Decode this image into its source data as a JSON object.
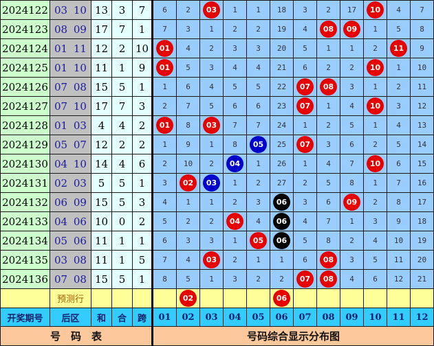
{
  "colors": {
    "red": "#e80000",
    "blue": "#0000cc",
    "black": "#000000"
  },
  "rows": [
    {
      "period": "2024122",
      "back": "03 10",
      "sum": "13",
      "he": "3",
      "span": "7",
      "cells": [
        6,
        2,
        {
          "b": "03",
          "c": "red"
        },
        1,
        1,
        18,
        3,
        2,
        17,
        {
          "b": "10",
          "c": "red"
        },
        4,
        7
      ]
    },
    {
      "period": "2024123",
      "back": "08 09",
      "sum": "17",
      "he": "7",
      "span": "1",
      "cells": [
        7,
        3,
        1,
        2,
        2,
        19,
        4,
        {
          "b": "08",
          "c": "red"
        },
        {
          "b": "09",
          "c": "red"
        },
        1,
        5,
        8
      ]
    },
    {
      "period": "2024124",
      "back": "01 11",
      "sum": "12",
      "he": "2",
      "span": "10",
      "cells": [
        {
          "b": "01",
          "c": "red"
        },
        4,
        2,
        3,
        3,
        20,
        5,
        1,
        1,
        2,
        {
          "b": "11",
          "c": "red"
        },
        9
      ]
    },
    {
      "period": "2024125",
      "back": "01 10",
      "sum": "11",
      "he": "1",
      "span": "9",
      "cells": [
        {
          "b": "01",
          "c": "red"
        },
        5,
        3,
        4,
        4,
        21,
        6,
        2,
        2,
        {
          "b": "10",
          "c": "red"
        },
        1,
        10
      ]
    },
    {
      "period": "2024126",
      "back": "07 08",
      "sum": "15",
      "he": "5",
      "span": "1",
      "cells": [
        1,
        6,
        4,
        5,
        5,
        22,
        {
          "b": "07",
          "c": "red"
        },
        {
          "b": "08",
          "c": "red"
        },
        3,
        1,
        2,
        11
      ]
    },
    {
      "period": "2024127",
      "back": "07 10",
      "sum": "17",
      "he": "7",
      "span": "3",
      "cells": [
        2,
        7,
        5,
        6,
        6,
        23,
        {
          "b": "07",
          "c": "red"
        },
        1,
        4,
        {
          "b": "10",
          "c": "red"
        },
        3,
        12
      ]
    },
    {
      "period": "2024128",
      "back": "01 03",
      "sum": "4",
      "he": "4",
      "span": "2",
      "cells": [
        {
          "b": "01",
          "c": "red"
        },
        8,
        {
          "b": "03",
          "c": "red"
        },
        7,
        7,
        24,
        1,
        2,
        5,
        1,
        4,
        13
      ]
    },
    {
      "period": "2024129",
      "back": "05 07",
      "sum": "12",
      "he": "2",
      "span": "2",
      "cells": [
        1,
        9,
        1,
        8,
        {
          "b": "05",
          "c": "blue"
        },
        25,
        {
          "b": "07",
          "c": "red"
        },
        3,
        6,
        2,
        5,
        14
      ]
    },
    {
      "period": "2024130",
      "back": "04 10",
      "sum": "14",
      "he": "4",
      "span": "6",
      "cells": [
        2,
        10,
        2,
        {
          "b": "04",
          "c": "blue"
        },
        1,
        26,
        1,
        4,
        7,
        {
          "b": "10",
          "c": "red"
        },
        6,
        15
      ]
    },
    {
      "period": "2024131",
      "back": "02 03",
      "sum": "5",
      "he": "5",
      "span": "1",
      "cells": [
        3,
        {
          "b": "02",
          "c": "red"
        },
        {
          "b": "03",
          "c": "blue"
        },
        1,
        2,
        27,
        2,
        5,
        8,
        1,
        7,
        16
      ]
    },
    {
      "period": "2024132",
      "back": "06 09",
      "sum": "15",
      "he": "5",
      "span": "3",
      "cells": [
        4,
        1,
        1,
        2,
        3,
        {
          "b": "06",
          "c": "black"
        },
        3,
        6,
        {
          "b": "09",
          "c": "red"
        },
        2,
        8,
        17
      ]
    },
    {
      "period": "2024133",
      "back": "04 06",
      "sum": "10",
      "he": "0",
      "span": "2",
      "cells": [
        5,
        2,
        2,
        {
          "b": "04",
          "c": "red"
        },
        4,
        {
          "b": "06",
          "c": "black"
        },
        4,
        7,
        1,
        3,
        9,
        18
      ]
    },
    {
      "period": "2024134",
      "back": "05 06",
      "sum": "11",
      "he": "1",
      "span": "1",
      "cells": [
        6,
        3,
        3,
        1,
        {
          "b": "05",
          "c": "red"
        },
        {
          "b": "06",
          "c": "black"
        },
        5,
        8,
        2,
        4,
        10,
        19
      ]
    },
    {
      "period": "2024135",
      "back": "03 08",
      "sum": "11",
      "he": "1",
      "span": "5",
      "cells": [
        7,
        4,
        {
          "b": "03",
          "c": "red"
        },
        2,
        1,
        1,
        6,
        {
          "b": "08",
          "c": "red"
        },
        3,
        5,
        11,
        20
      ]
    },
    {
      "period": "2024136",
      "back": "07 08",
      "sum": "15",
      "he": "5",
      "span": "1",
      "cells": [
        8,
        5,
        1,
        3,
        2,
        2,
        {
          "b": "07",
          "c": "red"
        },
        {
          "b": "08",
          "c": "red"
        },
        4,
        6,
        12,
        21
      ]
    }
  ],
  "prediction": {
    "label": "预测行",
    "cells": [
      "",
      {
        "b": "02",
        "c": "red"
      },
      "",
      "",
      "",
      {
        "b": "06",
        "c": "red"
      },
      "",
      "",
      "",
      "",
      "",
      ""
    ]
  },
  "header": {
    "period": "开奖期号",
    "back": "后区",
    "sum": "和",
    "he": "合",
    "span": "跨",
    "numbers": [
      "01",
      "02",
      "03",
      "04",
      "05",
      "06",
      "07",
      "08",
      "09",
      "10",
      "11",
      "12"
    ]
  },
  "footer": {
    "left": "号　码　表",
    "right": "号码综合显示分布图"
  }
}
